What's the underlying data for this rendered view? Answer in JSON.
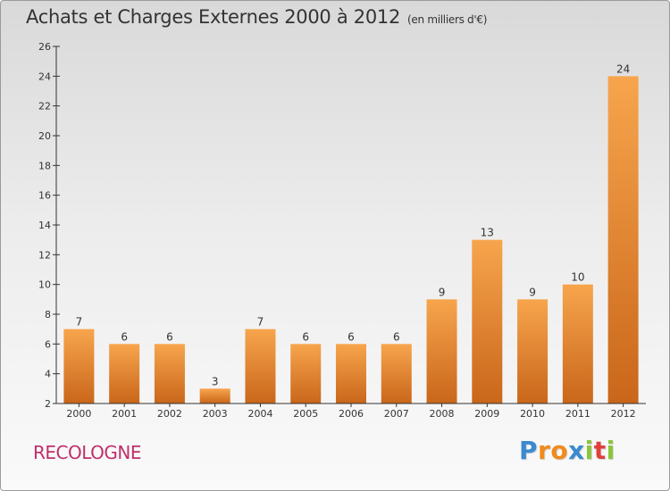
{
  "title": "Achats et Charges Externes 2000 à 2012",
  "subtitle": "(en milliers d'€)",
  "commune": "RECOLOGNE",
  "logo": {
    "text": "Proxiti",
    "letters": [
      {
        "ch": "P",
        "color": "#3a8ad0"
      },
      {
        "ch": "r",
        "color": "#f08a1c"
      },
      {
        "ch": "o",
        "color": "#f08a1c"
      },
      {
        "ch": "x",
        "color": "#3a8ad0"
      },
      {
        "ch": "i",
        "color": "#8cc43c"
      },
      {
        "ch": "t",
        "color": "#e0403a"
      },
      {
        "ch": "i",
        "color": "#8cc43c"
      }
    ]
  },
  "colors": {
    "bar_top": "#f7a54d",
    "bar_bottom": "#c9661a",
    "axis": "#333333",
    "text": "#333333"
  },
  "chart_data": {
    "type": "bar",
    "categories": [
      "2000",
      "2001",
      "2002",
      "2003",
      "2004",
      "2005",
      "2006",
      "2007",
      "2008",
      "2009",
      "2010",
      "2011",
      "2012"
    ],
    "values": [
      7,
      6,
      6,
      3,
      7,
      6,
      6,
      6,
      9,
      13,
      9,
      10,
      24
    ],
    "ylim": [
      2,
      26
    ],
    "yticks": [
      2,
      4,
      6,
      8,
      10,
      12,
      14,
      16,
      18,
      20,
      22,
      24,
      26
    ],
    "grid": false,
    "data_labels": true
  }
}
